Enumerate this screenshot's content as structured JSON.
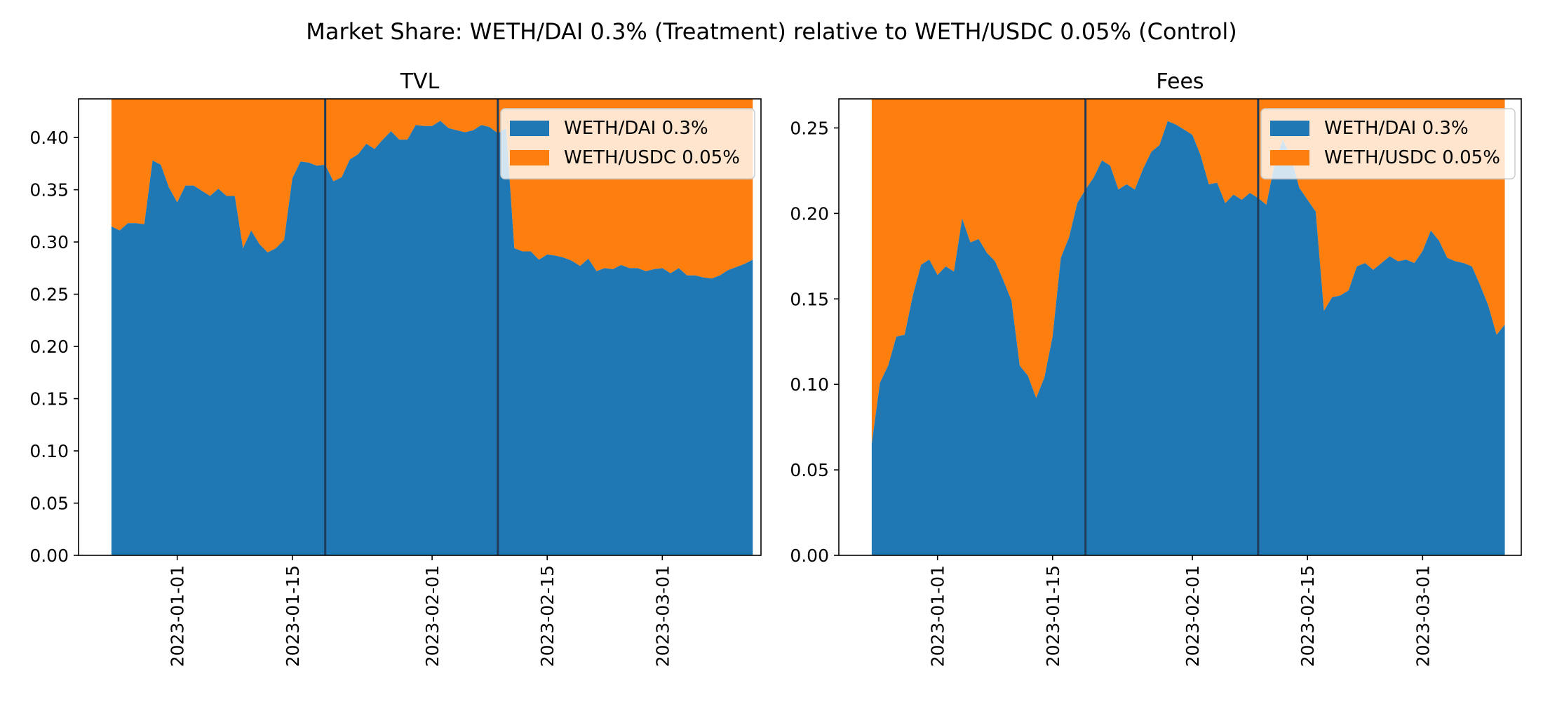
{
  "figure_title": "Market Share: WETH/DAI 0.3% (Treatment) relative to WETH/USDC 0.05% (Control)",
  "colors": {
    "treatment": "#1f77b4",
    "control": "#ff7f0e",
    "vline": "#1f3b57",
    "axis": "#000000"
  },
  "chart_data": [
    {
      "type": "area",
      "title": "TVL",
      "xlabel": "",
      "ylabel": "",
      "stacked": true,
      "normalized": true,
      "xlim": [
        "2022-12-20",
        "2023-03-13"
      ],
      "ylim": [
        0,
        0.437
      ],
      "yticks": [
        0.0,
        0.05,
        0.1,
        0.15,
        0.2,
        0.25,
        0.3,
        0.35,
        0.4
      ],
      "ytick_labels": [
        "0.00",
        "0.05",
        "0.10",
        "0.15",
        "0.20",
        "0.25",
        "0.30",
        "0.35",
        "0.40"
      ],
      "xticks": [
        "2023-01-01",
        "2023-01-15",
        "2023-02-01",
        "2023-02-15",
        "2023-03-01"
      ],
      "vlines": [
        "2023-01-19",
        "2023-02-09"
      ],
      "legend_position": "top-right",
      "grid": false,
      "series": [
        {
          "name": "WETH/DAI 0.3%",
          "points": [
            [
              "2022-12-24",
              0.315
            ],
            [
              "2022-12-25",
              0.311
            ],
            [
              "2022-12-26",
              0.318
            ],
            [
              "2022-12-27",
              0.318
            ],
            [
              "2022-12-28",
              0.317
            ],
            [
              "2022-12-29",
              0.378
            ],
            [
              "2022-12-30",
              0.374
            ],
            [
              "2022-12-31",
              0.352
            ],
            [
              "2023-01-01",
              0.338
            ],
            [
              "2023-01-02",
              0.354
            ],
            [
              "2023-01-03",
              0.354
            ],
            [
              "2023-01-04",
              0.349
            ],
            [
              "2023-01-05",
              0.344
            ],
            [
              "2023-01-06",
              0.351
            ],
            [
              "2023-01-07",
              0.344
            ],
            [
              "2023-01-08",
              0.344
            ],
            [
              "2023-01-09",
              0.294
            ],
            [
              "2023-01-10",
              0.311
            ],
            [
              "2023-01-11",
              0.298
            ],
            [
              "2023-01-12",
              0.29
            ],
            [
              "2023-01-13",
              0.294
            ],
            [
              "2023-01-14",
              0.302
            ],
            [
              "2023-01-15",
              0.361
            ],
            [
              "2023-01-16",
              0.377
            ],
            [
              "2023-01-17",
              0.376
            ],
            [
              "2023-01-18",
              0.373
            ],
            [
              "2023-01-19",
              0.374
            ],
            [
              "2023-01-20",
              0.358
            ],
            [
              "2023-01-21",
              0.362
            ],
            [
              "2023-01-22",
              0.379
            ],
            [
              "2023-01-23",
              0.384
            ],
            [
              "2023-01-24",
              0.394
            ],
            [
              "2023-01-25",
              0.389
            ],
            [
              "2023-01-26",
              0.398
            ],
            [
              "2023-01-27",
              0.406
            ],
            [
              "2023-01-28",
              0.398
            ],
            [
              "2023-01-29",
              0.398
            ],
            [
              "2023-01-30",
              0.412
            ],
            [
              "2023-01-31",
              0.411
            ],
            [
              "2023-02-01",
              0.411
            ],
            [
              "2023-02-02",
              0.416
            ],
            [
              "2023-02-03",
              0.409
            ],
            [
              "2023-02-04",
              0.407
            ],
            [
              "2023-02-05",
              0.405
            ],
            [
              "2023-02-06",
              0.407
            ],
            [
              "2023-02-07",
              0.412
            ],
            [
              "2023-02-08",
              0.41
            ],
            [
              "2023-02-09",
              0.404
            ],
            [
              "2023-02-10",
              0.409
            ],
            [
              "2023-02-11",
              0.294
            ],
            [
              "2023-02-12",
              0.291
            ],
            [
              "2023-02-13",
              0.291
            ],
            [
              "2023-02-14",
              0.283
            ],
            [
              "2023-02-15",
              0.288
            ],
            [
              "2023-02-16",
              0.287
            ],
            [
              "2023-02-17",
              0.285
            ],
            [
              "2023-02-18",
              0.282
            ],
            [
              "2023-02-19",
              0.277
            ],
            [
              "2023-02-20",
              0.284
            ],
            [
              "2023-02-21",
              0.272
            ],
            [
              "2023-02-22",
              0.275
            ],
            [
              "2023-02-23",
              0.274
            ],
            [
              "2023-02-24",
              0.278
            ],
            [
              "2023-02-25",
              0.275
            ],
            [
              "2023-02-26",
              0.275
            ],
            [
              "2023-02-27",
              0.272
            ],
            [
              "2023-02-28",
              0.274
            ],
            [
              "2023-03-01",
              0.275
            ],
            [
              "2023-03-02",
              0.27
            ],
            [
              "2023-03-03",
              0.275
            ],
            [
              "2023-03-04",
              0.268
            ],
            [
              "2023-03-05",
              0.268
            ],
            [
              "2023-03-06",
              0.266
            ],
            [
              "2023-03-07",
              0.265
            ],
            [
              "2023-03-08",
              0.268
            ],
            [
              "2023-03-09",
              0.273
            ],
            [
              "2023-03-10",
              0.276
            ],
            [
              "2023-03-11",
              0.279
            ],
            [
              "2023-03-12",
              0.283
            ]
          ]
        },
        {
          "name": "WETH/USDC 0.05%",
          "fill": "remainder_to_1"
        }
      ]
    },
    {
      "type": "area",
      "title": "Fees",
      "xlabel": "",
      "ylabel": "",
      "stacked": true,
      "normalized": true,
      "xlim": [
        "2022-12-20",
        "2023-03-13"
      ],
      "ylim": [
        0,
        0.267
      ],
      "yticks": [
        0.0,
        0.05,
        0.1,
        0.15,
        0.2,
        0.25
      ],
      "ytick_labels": [
        "0.00",
        "0.05",
        "0.10",
        "0.15",
        "0.20",
        "0.25"
      ],
      "xticks": [
        "2023-01-01",
        "2023-01-15",
        "2023-02-01",
        "2023-02-15",
        "2023-03-01"
      ],
      "vlines": [
        "2023-01-19",
        "2023-02-09"
      ],
      "legend_position": "top-right",
      "grid": false,
      "series": [
        {
          "name": "WETH/DAI 0.3%",
          "points": [
            [
              "2022-12-24",
              0.065
            ],
            [
              "2022-12-25",
              0.101
            ],
            [
              "2022-12-26",
              0.111
            ],
            [
              "2022-12-27",
              0.128
            ],
            [
              "2022-12-28",
              0.129
            ],
            [
              "2022-12-29",
              0.152
            ],
            [
              "2022-12-30",
              0.17
            ],
            [
              "2022-12-31",
              0.173
            ],
            [
              "2023-01-01",
              0.164
            ],
            [
              "2023-01-02",
              0.169
            ],
            [
              "2023-01-03",
              0.166
            ],
            [
              "2023-01-04",
              0.197
            ],
            [
              "2023-01-05",
              0.183
            ],
            [
              "2023-01-06",
              0.185
            ],
            [
              "2023-01-07",
              0.177
            ],
            [
              "2023-01-08",
              0.172
            ],
            [
              "2023-01-09",
              0.161
            ],
            [
              "2023-01-10",
              0.149
            ],
            [
              "2023-01-11",
              0.111
            ],
            [
              "2023-01-12",
              0.105
            ],
            [
              "2023-01-13",
              0.092
            ],
            [
              "2023-01-14",
              0.104
            ],
            [
              "2023-01-15",
              0.128
            ],
            [
              "2023-01-16",
              0.174
            ],
            [
              "2023-01-17",
              0.186
            ],
            [
              "2023-01-18",
              0.206
            ],
            [
              "2023-01-19",
              0.214
            ],
            [
              "2023-01-20",
              0.221
            ],
            [
              "2023-01-21",
              0.231
            ],
            [
              "2023-01-22",
              0.228
            ],
            [
              "2023-01-23",
              0.214
            ],
            [
              "2023-01-24",
              0.217
            ],
            [
              "2023-01-25",
              0.214
            ],
            [
              "2023-01-26",
              0.226
            ],
            [
              "2023-01-27",
              0.236
            ],
            [
              "2023-01-28",
              0.24
            ],
            [
              "2023-01-29",
              0.254
            ],
            [
              "2023-01-30",
              0.252
            ],
            [
              "2023-01-31",
              0.249
            ],
            [
              "2023-02-01",
              0.246
            ],
            [
              "2023-02-02",
              0.234
            ],
            [
              "2023-02-03",
              0.217
            ],
            [
              "2023-02-04",
              0.218
            ],
            [
              "2023-02-05",
              0.206
            ],
            [
              "2023-02-06",
              0.211
            ],
            [
              "2023-02-07",
              0.208
            ],
            [
              "2023-02-08",
              0.212
            ],
            [
              "2023-02-09",
              0.209
            ],
            [
              "2023-02-10",
              0.205
            ],
            [
              "2023-02-11",
              0.229
            ],
            [
              "2023-02-12",
              0.243
            ],
            [
              "2023-02-13",
              0.233
            ],
            [
              "2023-02-14",
              0.215
            ],
            [
              "2023-02-15",
              0.208
            ],
            [
              "2023-02-16",
              0.201
            ],
            [
              "2023-02-17",
              0.143
            ],
            [
              "2023-02-18",
              0.151
            ],
            [
              "2023-02-19",
              0.152
            ],
            [
              "2023-02-20",
              0.155
            ],
            [
              "2023-02-21",
              0.169
            ],
            [
              "2023-02-22",
              0.171
            ],
            [
              "2023-02-23",
              0.167
            ],
            [
              "2023-02-24",
              0.171
            ],
            [
              "2023-02-25",
              0.175
            ],
            [
              "2023-02-26",
              0.172
            ],
            [
              "2023-02-27",
              0.173
            ],
            [
              "2023-02-28",
              0.171
            ],
            [
              "2023-03-01",
              0.178
            ],
            [
              "2023-03-02",
              0.19
            ],
            [
              "2023-03-03",
              0.184
            ],
            [
              "2023-03-04",
              0.174
            ],
            [
              "2023-03-05",
              0.172
            ],
            [
              "2023-03-06",
              0.171
            ],
            [
              "2023-03-07",
              0.169
            ],
            [
              "2023-03-08",
              0.158
            ],
            [
              "2023-03-09",
              0.146
            ],
            [
              "2023-03-10",
              0.129
            ],
            [
              "2023-03-11",
              0.135
            ]
          ]
        },
        {
          "name": "WETH/USDC 0.05%",
          "fill": "remainder_to_1"
        }
      ]
    }
  ]
}
